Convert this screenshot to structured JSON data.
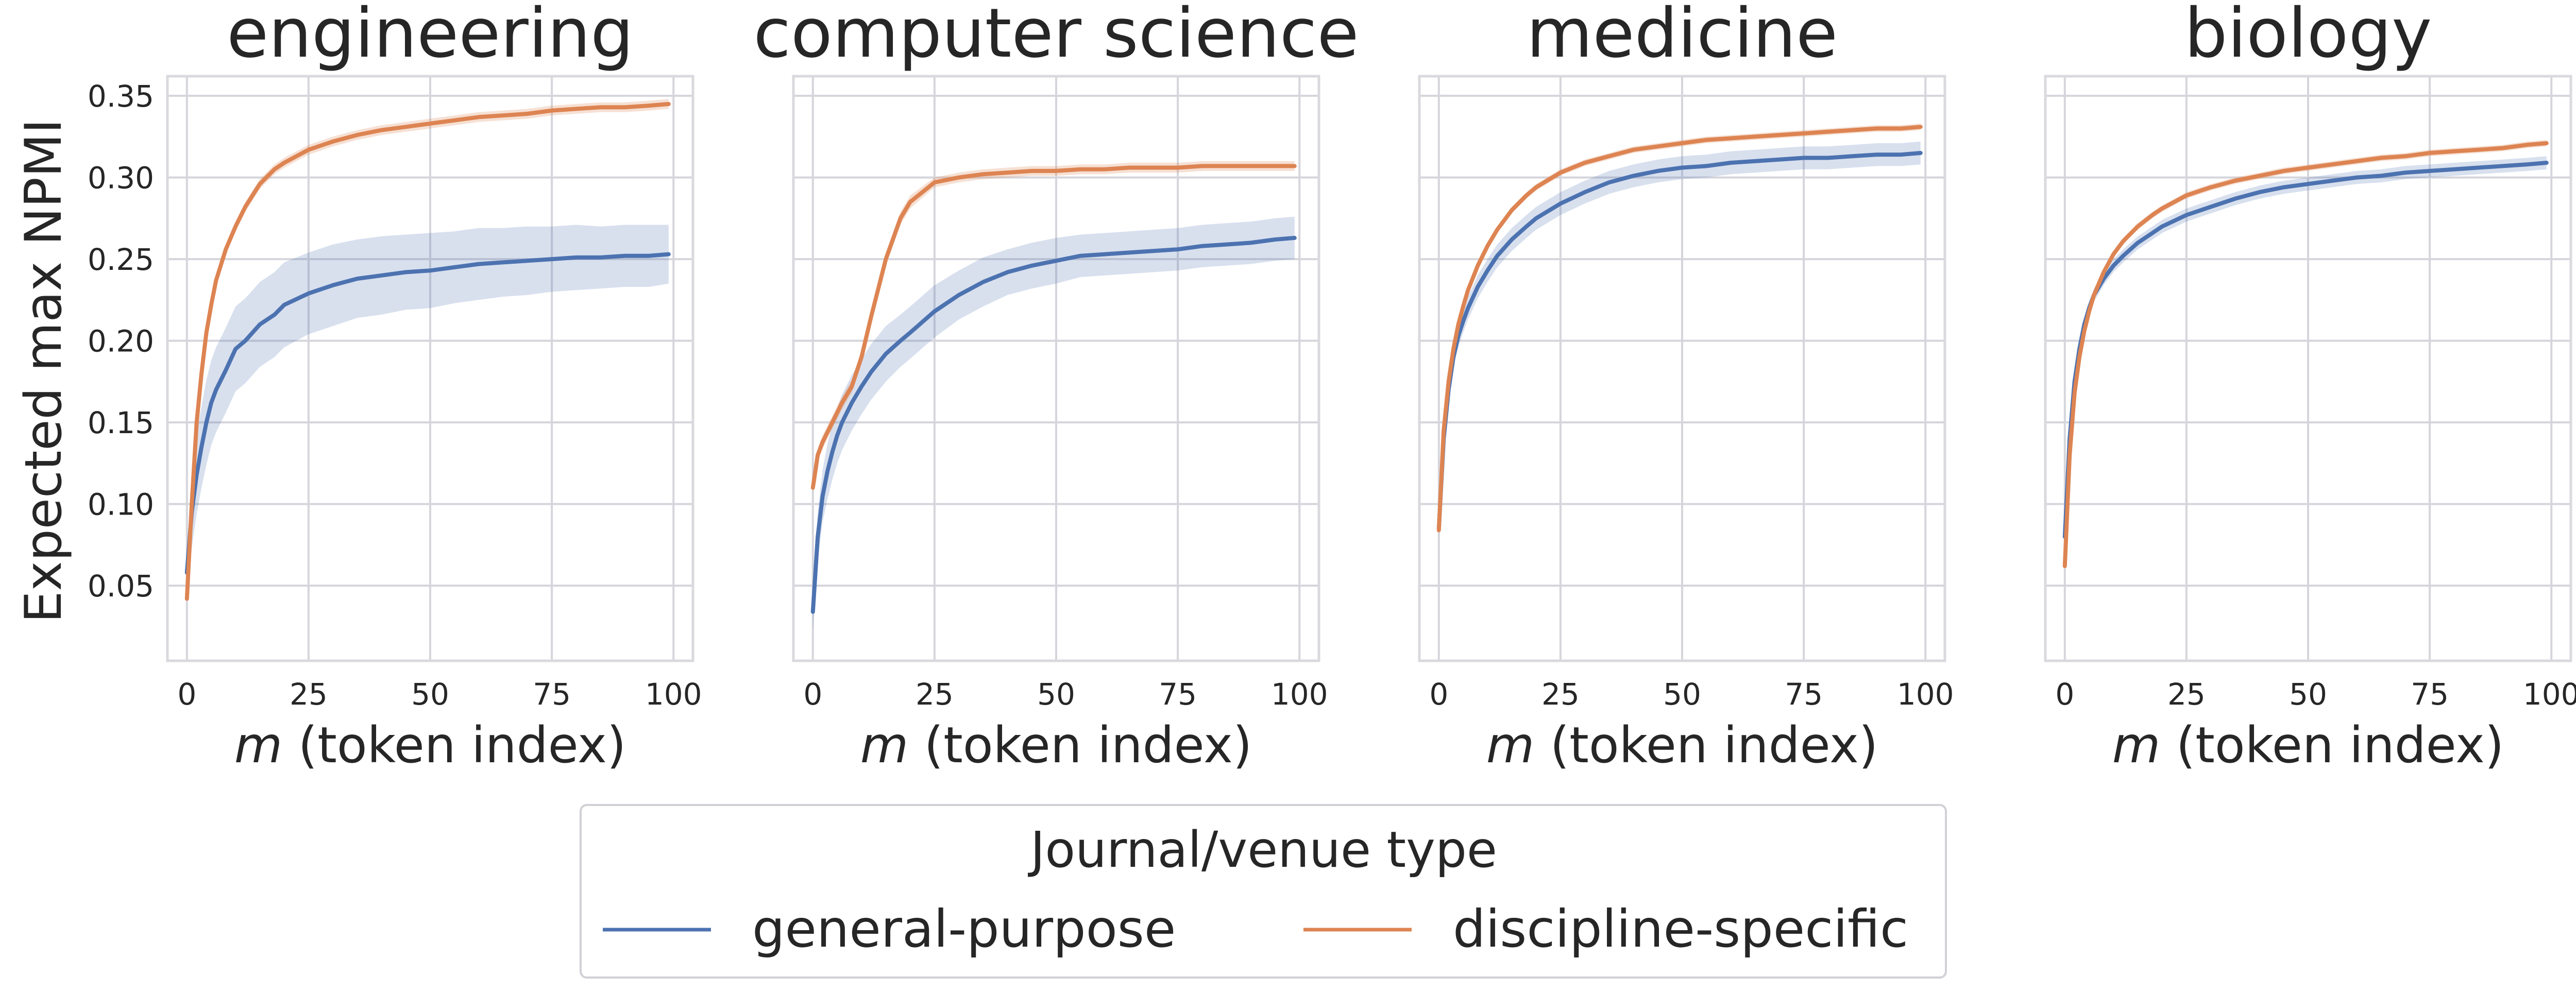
{
  "colors": {
    "general": "#4c72b0",
    "specific": "#dd8452",
    "band": "#4c72b0",
    "grid": "#d5d5dc",
    "frame": "#d9d9de",
    "text": "#262626"
  },
  "shared_ylabel": "Expected max NPMI",
  "legend": {
    "title": "Journal/venue type",
    "items": [
      "general-purpose",
      "discipline-specific"
    ]
  },
  "chart_data": [
    {
      "type": "line",
      "title": "engineering",
      "xlabel_var": "m",
      "xlabel_rest": " (token index)",
      "ylabel": "Expected max NPMI",
      "xlim": [
        -4,
        104
      ],
      "ylim": [
        0.004,
        0.362
      ],
      "xticks": [
        0,
        25,
        50,
        75,
        100
      ],
      "yticks": [
        0.05,
        0.1,
        0.15,
        0.2,
        0.25,
        0.3,
        0.35
      ],
      "grid": true,
      "series": [
        {
          "name": "general-purpose",
          "x": [
            0,
            1,
            2,
            3,
            4,
            5,
            6,
            8,
            10,
            12,
            15,
            18,
            20,
            25,
            30,
            35,
            40,
            45,
            50,
            55,
            60,
            65,
            70,
            75,
            80,
            85,
            90,
            95,
            99
          ],
          "y": [
            0.058,
            0.095,
            0.118,
            0.135,
            0.15,
            0.162,
            0.17,
            0.182,
            0.195,
            0.2,
            0.21,
            0.216,
            0.222,
            0.229,
            0.234,
            0.238,
            0.24,
            0.242,
            0.243,
            0.245,
            0.247,
            0.248,
            0.249,
            0.25,
            0.251,
            0.251,
            0.252,
            0.252,
            0.253
          ],
          "band": [
            0.015,
            0.022,
            0.024,
            0.025,
            0.026,
            0.026,
            0.026,
            0.026,
            0.026,
            0.026,
            0.026,
            0.026,
            0.026,
            0.025,
            0.025,
            0.024,
            0.024,
            0.023,
            0.023,
            0.022,
            0.022,
            0.021,
            0.021,
            0.02,
            0.02,
            0.019,
            0.019,
            0.019,
            0.018
          ]
        },
        {
          "name": "discipline-specific",
          "x": [
            0,
            1,
            2,
            3,
            4,
            5,
            6,
            8,
            10,
            12,
            15,
            18,
            20,
            25,
            30,
            35,
            40,
            45,
            50,
            55,
            60,
            65,
            70,
            75,
            80,
            85,
            90,
            95,
            99
          ],
          "y": [
            0.042,
            0.1,
            0.15,
            0.18,
            0.205,
            0.222,
            0.237,
            0.256,
            0.27,
            0.282,
            0.296,
            0.305,
            0.309,
            0.317,
            0.322,
            0.326,
            0.329,
            0.331,
            0.333,
            0.335,
            0.337,
            0.338,
            0.339,
            0.341,
            0.342,
            0.343,
            0.343,
            0.344,
            0.345
          ],
          "band": [
            0.002,
            0.003,
            0.003,
            0.003,
            0.003,
            0.003,
            0.003,
            0.003,
            0.003,
            0.003,
            0.003,
            0.003,
            0.003,
            0.003,
            0.003,
            0.003,
            0.003,
            0.003,
            0.003,
            0.003,
            0.003,
            0.003,
            0.003,
            0.003,
            0.003,
            0.003,
            0.003,
            0.003,
            0.003
          ]
        }
      ]
    },
    {
      "type": "line",
      "title": "computer science",
      "xlabel_var": "m",
      "xlabel_rest": " (token index)",
      "ylabel": "",
      "xlim": [
        -4,
        104
      ],
      "ylim": [
        0.004,
        0.362
      ],
      "xticks": [
        0,
        25,
        50,
        75,
        100
      ],
      "yticks": [
        0.05,
        0.1,
        0.15,
        0.2,
        0.25,
        0.3,
        0.35
      ],
      "grid": true,
      "series": [
        {
          "name": "general-purpose",
          "x": [
            0,
            1,
            2,
            3,
            4,
            5,
            6,
            8,
            10,
            12,
            15,
            18,
            20,
            25,
            30,
            35,
            40,
            45,
            50,
            55,
            60,
            65,
            70,
            75,
            80,
            85,
            90,
            95,
            99
          ],
          "y": [
            0.034,
            0.08,
            0.105,
            0.12,
            0.132,
            0.142,
            0.15,
            0.162,
            0.172,
            0.181,
            0.192,
            0.2,
            0.205,
            0.218,
            0.228,
            0.236,
            0.242,
            0.246,
            0.249,
            0.252,
            0.253,
            0.254,
            0.255,
            0.256,
            0.258,
            0.259,
            0.26,
            0.262,
            0.263
          ],
          "band": [
            0.012,
            0.015,
            0.016,
            0.017,
            0.017,
            0.017,
            0.017,
            0.017,
            0.017,
            0.017,
            0.017,
            0.016,
            0.016,
            0.016,
            0.015,
            0.015,
            0.014,
            0.014,
            0.014,
            0.013,
            0.013,
            0.013,
            0.013,
            0.013,
            0.013,
            0.013,
            0.013,
            0.013,
            0.013
          ]
        },
        {
          "name": "discipline-specific",
          "x": [
            0,
            1,
            2,
            3,
            4,
            5,
            6,
            8,
            10,
            12,
            15,
            18,
            20,
            25,
            30,
            35,
            40,
            45,
            50,
            55,
            60,
            65,
            70,
            75,
            80,
            85,
            90,
            95,
            99
          ],
          "y": [
            0.11,
            0.13,
            0.138,
            0.144,
            0.15,
            0.156,
            0.162,
            0.172,
            0.19,
            0.215,
            0.25,
            0.275,
            0.285,
            0.297,
            0.3,
            0.302,
            0.303,
            0.304,
            0.304,
            0.305,
            0.305,
            0.306,
            0.306,
            0.306,
            0.307,
            0.307,
            0.307,
            0.307,
            0.307
          ],
          "band": [
            0.003,
            0.004,
            0.004,
            0.004,
            0.004,
            0.004,
            0.004,
            0.004,
            0.004,
            0.004,
            0.004,
            0.004,
            0.004,
            0.003,
            0.003,
            0.003,
            0.003,
            0.003,
            0.003,
            0.003,
            0.003,
            0.003,
            0.003,
            0.003,
            0.003,
            0.003,
            0.003,
            0.003,
            0.003
          ]
        }
      ]
    },
    {
      "type": "line",
      "title": "medicine",
      "xlabel_var": "m",
      "xlabel_rest": " (token index)",
      "ylabel": "",
      "xlim": [
        -4,
        104
      ],
      "ylim": [
        0.004,
        0.362
      ],
      "xticks": [
        0,
        25,
        50,
        75,
        100
      ],
      "yticks": [
        0.05,
        0.1,
        0.15,
        0.2,
        0.25,
        0.3,
        0.35
      ],
      "grid": true,
      "series": [
        {
          "name": "general-purpose",
          "x": [
            0,
            1,
            2,
            3,
            4,
            5,
            6,
            8,
            10,
            12,
            15,
            18,
            20,
            25,
            30,
            35,
            40,
            45,
            50,
            55,
            60,
            65,
            70,
            75,
            80,
            85,
            90,
            95,
            99
          ],
          "y": [
            0.085,
            0.14,
            0.17,
            0.19,
            0.203,
            0.212,
            0.22,
            0.233,
            0.243,
            0.252,
            0.262,
            0.27,
            0.275,
            0.284,
            0.291,
            0.297,
            0.301,
            0.304,
            0.306,
            0.307,
            0.309,
            0.31,
            0.311,
            0.312,
            0.312,
            0.313,
            0.314,
            0.314,
            0.315
          ],
          "band": [
            0.004,
            0.005,
            0.006,
            0.006,
            0.007,
            0.007,
            0.007,
            0.007,
            0.007,
            0.007,
            0.007,
            0.007,
            0.007,
            0.007,
            0.007,
            0.007,
            0.007,
            0.007,
            0.007,
            0.007,
            0.007,
            0.007,
            0.007,
            0.007,
            0.007,
            0.007,
            0.007,
            0.007,
            0.007
          ]
        },
        {
          "name": "discipline-specific",
          "x": [
            0,
            1,
            2,
            3,
            4,
            5,
            6,
            8,
            10,
            12,
            15,
            18,
            20,
            25,
            30,
            35,
            40,
            45,
            50,
            55,
            60,
            65,
            70,
            75,
            80,
            85,
            90,
            95,
            99
          ],
          "y": [
            0.084,
            0.145,
            0.175,
            0.195,
            0.21,
            0.221,
            0.231,
            0.246,
            0.258,
            0.268,
            0.28,
            0.289,
            0.294,
            0.303,
            0.309,
            0.313,
            0.317,
            0.319,
            0.321,
            0.323,
            0.324,
            0.325,
            0.326,
            0.327,
            0.328,
            0.329,
            0.33,
            0.33,
            0.331
          ],
          "band": [
            0.002,
            0.002,
            0.002,
            0.002,
            0.002,
            0.002,
            0.002,
            0.002,
            0.002,
            0.002,
            0.002,
            0.002,
            0.002,
            0.002,
            0.002,
            0.002,
            0.002,
            0.002,
            0.002,
            0.002,
            0.002,
            0.002,
            0.002,
            0.002,
            0.002,
            0.002,
            0.002,
            0.002,
            0.002
          ]
        }
      ]
    },
    {
      "type": "line",
      "title": "biology",
      "xlabel_var": "m",
      "xlabel_rest": " (token index)",
      "ylabel": "",
      "xlim": [
        -4,
        104
      ],
      "ylim": [
        0.004,
        0.362
      ],
      "xticks": [
        0,
        25,
        50,
        75,
        100
      ],
      "yticks": [
        0.05,
        0.1,
        0.15,
        0.2,
        0.25,
        0.3,
        0.35
      ],
      "grid": true,
      "series": [
        {
          "name": "general-purpose",
          "x": [
            0,
            1,
            2,
            3,
            4,
            5,
            6,
            8,
            10,
            12,
            15,
            18,
            20,
            25,
            30,
            35,
            40,
            45,
            50,
            55,
            60,
            65,
            70,
            75,
            80,
            85,
            90,
            95,
            99
          ],
          "y": [
            0.08,
            0.14,
            0.175,
            0.195,
            0.21,
            0.22,
            0.228,
            0.238,
            0.246,
            0.252,
            0.26,
            0.266,
            0.27,
            0.277,
            0.282,
            0.287,
            0.291,
            0.294,
            0.296,
            0.298,
            0.3,
            0.301,
            0.303,
            0.304,
            0.305,
            0.306,
            0.307,
            0.308,
            0.309
          ],
          "band": [
            0.003,
            0.004,
            0.004,
            0.004,
            0.004,
            0.004,
            0.004,
            0.004,
            0.004,
            0.004,
            0.004,
            0.004,
            0.004,
            0.004,
            0.004,
            0.004,
            0.004,
            0.004,
            0.004,
            0.004,
            0.004,
            0.004,
            0.004,
            0.004,
            0.004,
            0.004,
            0.004,
            0.004,
            0.004
          ]
        },
        {
          "name": "discipline-specific",
          "x": [
            0,
            1,
            2,
            3,
            4,
            5,
            6,
            8,
            10,
            12,
            15,
            18,
            20,
            25,
            30,
            35,
            40,
            45,
            50,
            55,
            60,
            65,
            70,
            75,
            80,
            85,
            90,
            95,
            99
          ],
          "y": [
            0.062,
            0.13,
            0.168,
            0.19,
            0.206,
            0.218,
            0.228,
            0.242,
            0.253,
            0.261,
            0.27,
            0.277,
            0.281,
            0.289,
            0.294,
            0.298,
            0.301,
            0.304,
            0.306,
            0.308,
            0.31,
            0.312,
            0.313,
            0.315,
            0.316,
            0.317,
            0.318,
            0.32,
            0.321
          ],
          "band": [
            0.002,
            0.002,
            0.002,
            0.002,
            0.002,
            0.002,
            0.002,
            0.002,
            0.002,
            0.002,
            0.002,
            0.002,
            0.002,
            0.002,
            0.002,
            0.002,
            0.002,
            0.002,
            0.002,
            0.002,
            0.002,
            0.002,
            0.002,
            0.002,
            0.002,
            0.002,
            0.002,
            0.002,
            0.002
          ]
        }
      ]
    }
  ]
}
